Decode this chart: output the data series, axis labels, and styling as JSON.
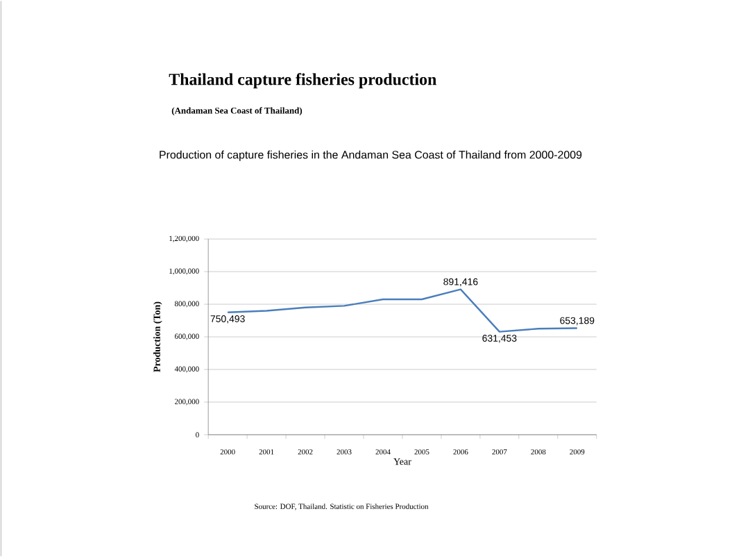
{
  "chart_data": {
    "type": "line",
    "title": "Thailand capture fisheries production",
    "subtitle": "(Andaman Sea Coast of Thailand)",
    "annotations": [
      "Production of capture fisheries in the Andaman Sea Coast of Thailand from 2000-2009",
      "Source: DOF, Thailand. Statistic on Fisheries Production"
    ],
    "xlabel": "Year",
    "ylabel": "Production (Ton)",
    "categories": [
      "2000",
      "2001",
      "2002",
      "2003",
      "2004",
      "2005",
      "2006",
      "2007",
      "2008",
      "2009"
    ],
    "series": [
      {
        "color": "#4a7ebb",
        "values": [
          750493,
          760000,
          780000,
          790000,
          830000,
          830000,
          891416,
          631453,
          650000,
          653189
        ],
        "value_labels": [
          "750,493",
          null,
          null,
          null,
          null,
          null,
          "891,416",
          "631,453",
          null,
          "653,189"
        ]
      }
    ],
    "ylim": [
      0,
      1200000
    ],
    "yticks": [
      {
        "value": 0,
        "label": "0"
      },
      {
        "value": 200000,
        "label": "200,000"
      },
      {
        "value": 400000,
        "label": "400,000"
      },
      {
        "value": 600000,
        "label": "600,000"
      },
      {
        "value": 800000,
        "label": "800,000"
      },
      {
        "value": 1000000,
        "label": "1,000,000"
      },
      {
        "value": 1200000,
        "label": "1,200,000"
      }
    ],
    "grid": "y",
    "marker": "none",
    "line_style": "solid"
  }
}
